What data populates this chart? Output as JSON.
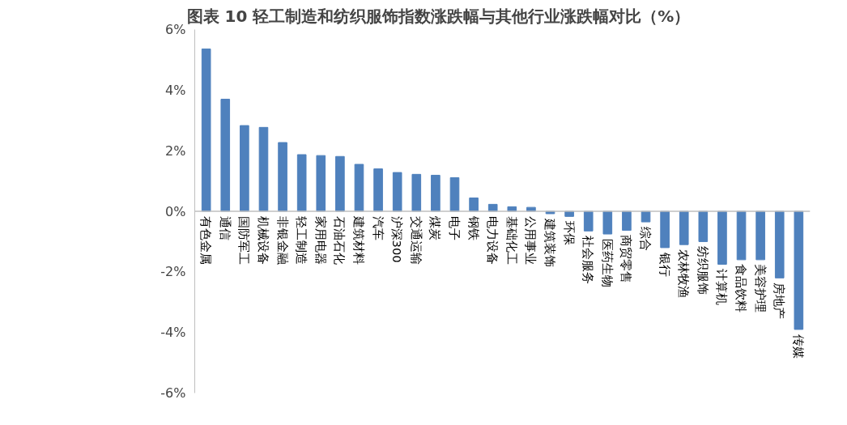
{
  "chart_data": {
    "type": "bar",
    "title": "图表 10 轻工制造和纺织服饰指数涨跌幅与其他行业涨跌幅对比（%）",
    "categories": [
      "有色金属",
      "通信",
      "国防军工",
      "机械设备",
      "非银金融",
      "轻工制造",
      "家用电器",
      "石油石化",
      "建筑材料",
      "汽车",
      "沪深300",
      "交通运输",
      "煤炭",
      "电子",
      "钢铁",
      "电力设备",
      "基础化工",
      "公用事业",
      "建筑装饰",
      "环保",
      "社会服务",
      "医药生物",
      "商贸零售",
      "综合",
      "银行",
      "农林牧渔",
      "纺织服饰",
      "计算机",
      "食品饮料",
      "美容护理",
      "房地产",
      "传媒"
    ],
    "values": [
      5.36,
      3.7,
      2.83,
      2.77,
      2.27,
      1.87,
      1.84,
      1.81,
      1.55,
      1.4,
      1.28,
      1.22,
      1.19,
      1.11,
      0.44,
      0.23,
      0.15,
      0.13,
      -0.08,
      -0.17,
      -0.65,
      -0.75,
      -0.63,
      -0.35,
      -1.2,
      -1.1,
      -1.0,
      -1.75,
      -1.6,
      -1.6,
      -2.2,
      -3.9
    ],
    "color": "#4f81bd",
    "ylim": [
      -6,
      6
    ],
    "yticks": [
      {
        "value": -6,
        "label": "-6%"
      },
      {
        "value": -4,
        "label": "-4%"
      },
      {
        "value": -2,
        "label": "-2%"
      },
      {
        "value": 0,
        "label": "0%"
      },
      {
        "value": 2,
        "label": "2%"
      },
      {
        "value": 4,
        "label": "4%"
      },
      {
        "value": 6,
        "label": "6%"
      }
    ],
    "grid": false
  }
}
